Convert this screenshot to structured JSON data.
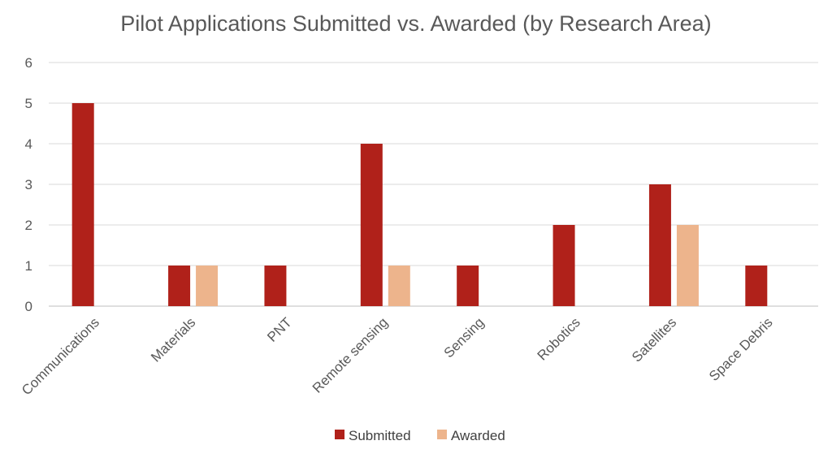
{
  "chart_data": {
    "type": "bar",
    "title": "Pilot Applications Submitted vs. Awarded (by Research Area)",
    "categories": [
      "Communications",
      "Materials",
      "PNT",
      "Remote sensing",
      "Sensing",
      "Robotics",
      "Satellites",
      "Space Debris"
    ],
    "series": [
      {
        "name": "Submitted",
        "color": "#B0211A",
        "values": [
          5,
          1,
          1,
          4,
          1,
          2,
          3,
          1
        ]
      },
      {
        "name": "Awarded",
        "color": "#EDB48C",
        "values": [
          0,
          1,
          0,
          1,
          0,
          0,
          2,
          0
        ]
      }
    ],
    "ylim": [
      0,
      6
    ],
    "yticks": [
      0,
      1,
      2,
      3,
      4,
      5,
      6
    ],
    "grid": true,
    "legend_position": "bottom"
  }
}
